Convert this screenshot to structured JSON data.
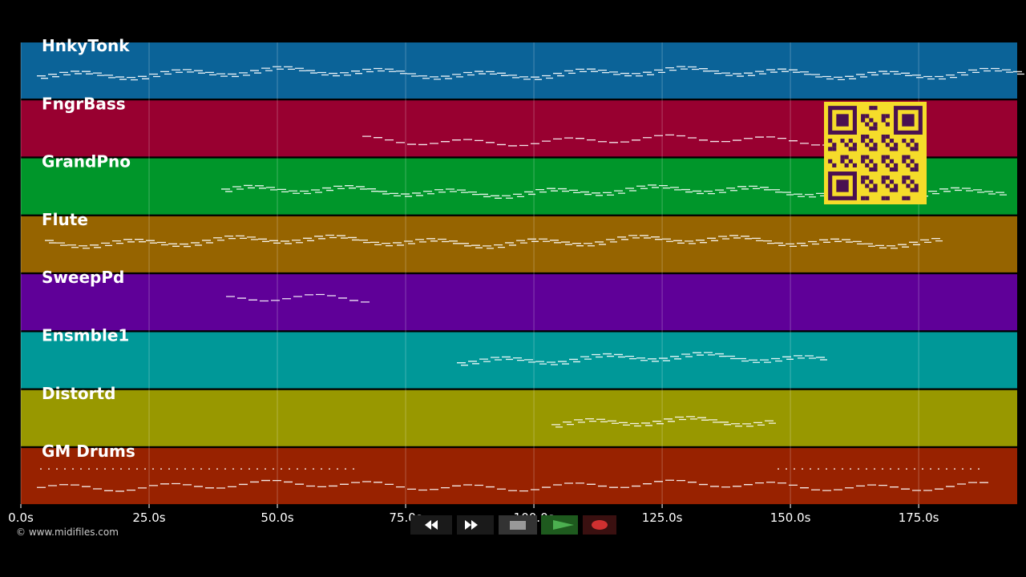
{
  "tracks": [
    {
      "name": "HnkyTonk",
      "color": "#0b6398"
    },
    {
      "name": "FngrBass",
      "color": "#980030"
    },
    {
      "name": "GrandPno",
      "color": "#00962a"
    },
    {
      "name": "Flute",
      "color": "#966400"
    },
    {
      "name": "SweepPd",
      "color": "#5f0098"
    },
    {
      "name": "Ensmble1",
      "color": "#009898"
    },
    {
      "name": "Distortd",
      "color": "#989800"
    },
    {
      "name": "GM Drums",
      "color": "#982200"
    }
  ],
  "time_axis": {
    "xlim": [
      0,
      194.2
    ],
    "xticks": [
      {
        "value": 0,
        "label": "0.0s"
      },
      {
        "value": 25,
        "label": "25.0s"
      },
      {
        "value": 50,
        "label": "50.0s"
      },
      {
        "value": 75,
        "label": "75.0s"
      },
      {
        "value": 100,
        "label": "100.0s"
      },
      {
        "value": 125,
        "label": "125.0s"
      },
      {
        "value": 150,
        "label": "150.0s"
      },
      {
        "value": 175,
        "label": "175.0s"
      }
    ]
  },
  "copyright": "© www.midifiles.com"
}
